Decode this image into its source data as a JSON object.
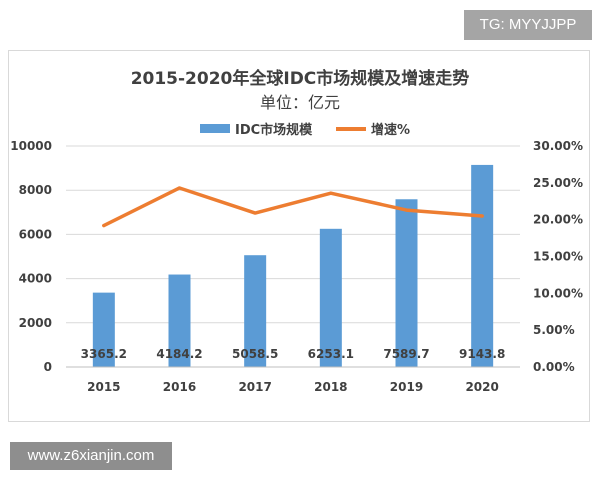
{
  "tag_label": "TG: MYYJJPP",
  "watermark_text": "www.z6xianjin.com",
  "chart_data": {
    "type": "bar",
    "title": "2015-2020年全球IDC市场规模及增速走势",
    "subtitle": "单位：亿元",
    "categories": [
      "2015",
      "2016",
      "2017",
      "2018",
      "2019",
      "2020"
    ],
    "series": [
      {
        "name": "IDC市场规模",
        "type": "bar",
        "axis": "left",
        "color": "#5b9bd5",
        "values": [
          3365.2,
          4184.2,
          5058.5,
          6253.1,
          7589.7,
          9143.8
        ],
        "data_labels": [
          "3365.2",
          "4184.2",
          "5058.5",
          "6253.1",
          "7589.7",
          "9143.8"
        ]
      },
      {
        "name": "增速%",
        "type": "line",
        "axis": "right",
        "color": "#ed7d31",
        "values": [
          0.192,
          0.243,
          0.209,
          0.236,
          0.213,
          0.205
        ]
      }
    ],
    "y_left": {
      "ylim": [
        0,
        10000
      ],
      "ticks": [
        0,
        2000,
        4000,
        6000,
        8000,
        10000
      ],
      "tick_labels": [
        "0",
        "2000",
        "4000",
        "6000",
        "8000",
        "10000"
      ]
    },
    "y_right": {
      "ylim": [
        0,
        0.3
      ],
      "ticks": [
        0,
        0.05,
        0.1,
        0.15,
        0.2,
        0.25,
        0.3
      ],
      "tick_labels": [
        "0.00%",
        "5.00%",
        "10.00%",
        "15.00%",
        "20.00%",
        "25.00%",
        "30.00%"
      ]
    },
    "grid": true,
    "legend_position": "top"
  }
}
